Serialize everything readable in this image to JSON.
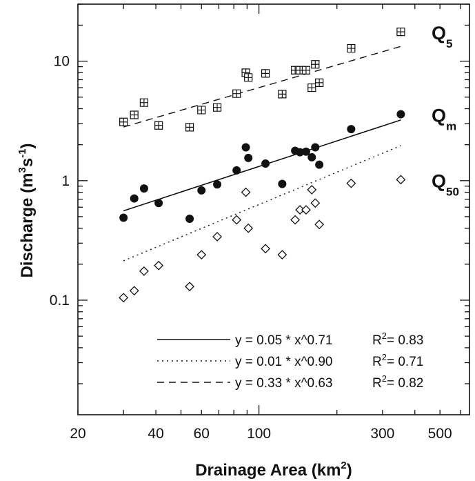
{
  "chart_data": {
    "type": "scatter",
    "xlabel": "Drainage Area (km",
    "xlabel_sup": "2",
    "xlabel_end": ")",
    "ylabel": "Discharge (m",
    "ylabel_sup1": "3",
    "ylabel_mid": "s",
    "ylabel_sup2": "-1",
    "ylabel_end": ")",
    "x_scale": "log",
    "y_scale": "log",
    "xlim": [
      20,
      650
    ],
    "ylim": [
      0.011,
      30
    ],
    "x_ticks": [
      {
        "value": 20,
        "label": "20"
      },
      {
        "value": 40,
        "label": "40"
      },
      {
        "value": 60,
        "label": "60"
      },
      {
        "value": 100,
        "label": "100"
      },
      {
        "value": 300,
        "label": "300"
      },
      {
        "value": 500,
        "label": "500"
      }
    ],
    "y_ticks": [
      {
        "value": 0.1,
        "label": "0.1"
      },
      {
        "value": 1,
        "label": "1"
      },
      {
        "value": 10,
        "label": "10"
      }
    ],
    "grid": false,
    "legend_position": "bottom-right",
    "series": [
      {
        "name": "Q",
        "subscript": "5",
        "marker": "boxed-plus",
        "x": [
          30,
          33,
          36,
          41,
          54,
          60,
          69,
          82,
          89,
          91,
          106,
          123,
          138,
          144,
          152,
          160,
          165,
          171,
          227,
          353
        ],
        "y": [
          3.1,
          3.55,
          4.5,
          2.9,
          2.8,
          3.9,
          4.1,
          5.35,
          8.0,
          7.3,
          7.9,
          5.3,
          8.4,
          8.4,
          8.4,
          6.0,
          9.4,
          6.6,
          12.8,
          17.6
        ]
      },
      {
        "name": "Q",
        "subscript": "m",
        "marker": "filled-circle",
        "x": [
          30,
          33,
          36,
          41,
          54,
          60,
          69,
          82,
          89,
          91,
          106,
          123,
          138,
          144,
          152,
          160,
          165,
          171,
          227,
          353
        ],
        "y": [
          0.49,
          0.71,
          0.86,
          0.65,
          0.48,
          0.83,
          0.93,
          1.22,
          1.9,
          1.55,
          1.39,
          0.94,
          1.78,
          1.73,
          1.75,
          1.57,
          1.9,
          1.36,
          2.7,
          3.6
        ]
      },
      {
        "name": "Q",
        "subscript": "50",
        "marker": "open-diamond",
        "x": [
          30,
          33,
          36,
          41,
          54,
          60,
          69,
          82,
          89,
          91,
          106,
          123,
          138,
          144,
          152,
          160,
          165,
          171,
          227,
          353
        ],
        "y": [
          0.105,
          0.12,
          0.175,
          0.195,
          0.13,
          0.24,
          0.34,
          0.47,
          0.8,
          0.4,
          0.27,
          0.24,
          0.47,
          0.57,
          0.57,
          0.84,
          0.65,
          0.43,
          0.95,
          1.02
        ]
      }
    ],
    "fits": [
      {
        "series": "m",
        "style": "solid",
        "a": 0.05,
        "b": 0.71,
        "r2_value": 0.83,
        "equation": "y = 0.05 * x^0.71",
        "r2": "= 0.83",
        "x_range": [
          30,
          353
        ]
      },
      {
        "series": "50",
        "style": "dotted",
        "a": 0.01,
        "b": 0.9,
        "r2_value": 0.71,
        "equation": "y = 0.01 * x^0.90",
        "r2": "= 0.71",
        "x_range": [
          30,
          353
        ]
      },
      {
        "series": "5",
        "style": "dashed",
        "a": 0.33,
        "b": 0.63,
        "r2_value": 0.82,
        "equation": "y = 0.33 * x^0.63",
        "r2": "= 0.82",
        "x_range": [
          30,
          353
        ]
      }
    ],
    "r2_label": "R",
    "r2_sup": "2"
  }
}
